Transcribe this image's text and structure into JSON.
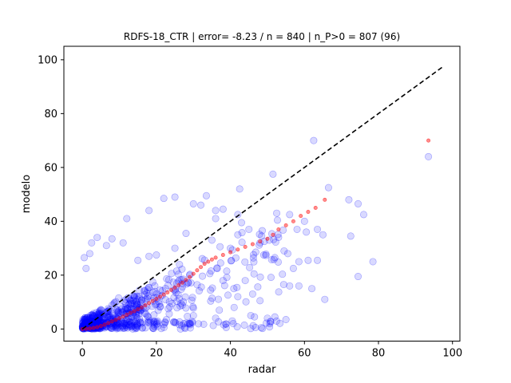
{
  "chart_data": {
    "type": "scatter",
    "title": "RDFS-18_CTR | error= -8.23 / n = 840 | n_P>0 = 807 (96)",
    "xlabel": "radar",
    "ylabel": "modelo",
    "xlim": [
      -5,
      102
    ],
    "ylim": [
      -4.5,
      105
    ],
    "xticks": [
      0,
      20,
      40,
      60,
      80,
      100
    ],
    "yticks": [
      0,
      20,
      40,
      60,
      80,
      100
    ],
    "grid": false,
    "colors": {
      "scatter": "#0000ff",
      "quantile": "#ff0000",
      "reference": "#000000"
    },
    "reference_line": {
      "style": "dashed",
      "x": [
        0,
        97.5
      ],
      "y": [
        0,
        97.5
      ]
    },
    "quantile_series": {
      "x": [
        0.0,
        1.0,
        2.0,
        3.0,
        4.0,
        5.0,
        6.0,
        7.0,
        8.0,
        9.0,
        10.0,
        11.0,
        12.0,
        13.0,
        14.0,
        15.0,
        16.0,
        17.0,
        18.0,
        19.0,
        20.0,
        21.0,
        22.0,
        23.0,
        24.0,
        25.0,
        26.0,
        27.0,
        28.0,
        29.0,
        30.0,
        31.0,
        32.0,
        33.0,
        34.0,
        35.0,
        36.0,
        38.0,
        40.0,
        42.0,
        44.0,
        46.0,
        48.0,
        50.0,
        51.5,
        53.0,
        55.0,
        57.0,
        59.0,
        61.0,
        63.0,
        65.5,
        93.5
      ],
      "y": [
        0.0,
        0.1,
        0.2,
        0.4,
        0.7,
        1.1,
        1.6,
        2.2,
        2.8,
        3.4,
        4.0,
        4.6,
        5.3,
        6.0,
        6.6,
        7.3,
        8.0,
        8.8,
        9.6,
        10.4,
        11.2,
        12.0,
        12.8,
        13.6,
        14.5,
        15.4,
        16.3,
        17.2,
        18.2,
        19.3,
        20.5,
        21.8,
        23.0,
        24.2,
        25.0,
        25.8,
        26.5,
        27.5,
        28.5,
        29.5,
        30.5,
        31.5,
        32.5,
        33.5,
        35.0,
        37.0,
        38.5,
        40.0,
        42.0,
        43.5,
        45.0,
        48.0,
        70.0
      ]
    },
    "scatter_outliers": [
      [
        62.5,
        70.0
      ],
      [
        93.5,
        64.0
      ],
      [
        51.5,
        57.5
      ],
      [
        66.5,
        52.5
      ],
      [
        42.5,
        52.0
      ],
      [
        72.0,
        48.0
      ],
      [
        74.5,
        46.5
      ],
      [
        76.0,
        42.5
      ],
      [
        60.0,
        40.0
      ],
      [
        63.5,
        37.0
      ],
      [
        60.5,
        36.0
      ],
      [
        72.5,
        34.5
      ],
      [
        65.0,
        35.0
      ],
      [
        78.5,
        25.0
      ],
      [
        74.5,
        19.5
      ],
      [
        63.5,
        25.5
      ],
      [
        61.0,
        25.5
      ],
      [
        58.5,
        25.0
      ],
      [
        65.5,
        11.0
      ],
      [
        62.0,
        15.0
      ],
      [
        58.5,
        16.0
      ],
      [
        56.0,
        16.0
      ],
      [
        57.0,
        22.5
      ],
      [
        33.5,
        49.5
      ],
      [
        22.0,
        48.5
      ],
      [
        25.0,
        49.0
      ],
      [
        18.0,
        44.0
      ],
      [
        12.0,
        41.0
      ],
      [
        30.0,
        46.5
      ],
      [
        32.0,
        46.0
      ],
      [
        36.0,
        44.0
      ],
      [
        38.0,
        44.5
      ],
      [
        36.0,
        41.0
      ],
      [
        43.0,
        39.5
      ],
      [
        42.0,
        35.0
      ],
      [
        48.0,
        32.0
      ],
      [
        40.0,
        30.0
      ],
      [
        52.0,
        26.5
      ],
      [
        52.0,
        4.5
      ],
      [
        50.0,
        4.0
      ],
      [
        45.5,
        5.0
      ],
      [
        46.5,
        4.5
      ],
      [
        36.0,
        4.0
      ],
      [
        40.5,
        3.0
      ],
      [
        30.0,
        5.0
      ],
      [
        55.0,
        3.5
      ],
      [
        48.0,
        10.5
      ],
      [
        46.0,
        13.0
      ],
      [
        54.5,
        29.0
      ],
      [
        55.5,
        28.0
      ],
      [
        49.0,
        27.5
      ],
      [
        53.0,
        34.0
      ],
      [
        50.5,
        33.0
      ],
      [
        45.0,
        37.0
      ],
      [
        58.0,
        37.0
      ],
      [
        52.5,
        43.0
      ],
      [
        56.0,
        42.5
      ],
      [
        42.0,
        42.5
      ],
      [
        4.0,
        34.0
      ],
      [
        2.5,
        32.0
      ],
      [
        0.5,
        26.5
      ],
      [
        2.0,
        28.0
      ],
      [
        1.0,
        22.5
      ],
      [
        6.5,
        31.0
      ],
      [
        8.0,
        33.5
      ],
      [
        11.0,
        32.0
      ],
      [
        15.0,
        25.5
      ],
      [
        18.0,
        27.0
      ],
      [
        20.0,
        27.5
      ],
      [
        25.0,
        30.0
      ],
      [
        28.0,
        35.5
      ],
      [
        35.0,
        33.0
      ],
      [
        39.0,
        21.5
      ],
      [
        38.0,
        18.0
      ],
      [
        44.0,
        18.0
      ],
      [
        42.0,
        12.0
      ],
      [
        41.0,
        8.0
      ],
      [
        37.0,
        7.0
      ]
    ]
  }
}
